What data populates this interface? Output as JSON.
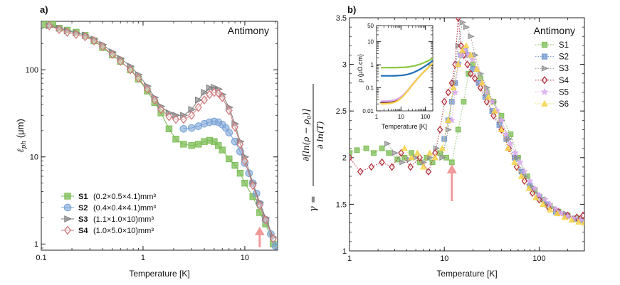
{
  "chart_data": [
    {
      "panel": "a)",
      "type": "scatter",
      "title": "Antimony",
      "xlabel": "Temperature [K]",
      "ylabel": "ℓ_ph (μm)",
      "xscale": "log",
      "yscale": "log",
      "xlim": [
        0.1,
        21
      ],
      "ylim": [
        0.85,
        360
      ],
      "xticks": [
        {
          "v": 0.1,
          "label": "0.1"
        },
        {
          "v": 1,
          "label": "1"
        },
        {
          "v": 10,
          "label": "10"
        }
      ],
      "yticks": [
        {
          "v": 1,
          "label": "1"
        },
        {
          "v": 10,
          "label": "10"
        },
        {
          "v": 100,
          "label": "100"
        }
      ],
      "arrow_at_T": 14,
      "series": [
        {
          "name": "S1",
          "desc": "(0.2×0.5×4.1)mm³",
          "color": "#7cbd55",
          "marker": "square",
          "x": [
            0.11,
            0.13,
            0.15,
            0.18,
            0.22,
            0.27,
            0.33,
            0.4,
            0.5,
            0.6,
            0.75,
            0.9,
            1.1,
            1.3,
            1.5,
            1.8,
            2.1,
            2.5,
            3.0,
            3.5,
            4.0,
            4.5,
            5.0,
            5.5,
            6.0,
            7.0,
            8.0,
            9.0,
            10.0,
            12.0,
            14.0,
            16.0,
            19.0
          ],
          "y": [
            330,
            330,
            300,
            285,
            270,
            248,
            215,
            180,
            148,
            125,
            100,
            78,
            57,
            42,
            32,
            21,
            16,
            14,
            13.5,
            14,
            15,
            15.5,
            15,
            13.5,
            12,
            9.5,
            8,
            6.5,
            5,
            3.5,
            2.3,
            1.7,
            1.0
          ]
        },
        {
          "name": "S2",
          "desc": "(0.4×0.4×4.1)mm³",
          "color": "#7aa3d6",
          "marker": "circle",
          "x": [
            2.5,
            3.0,
            3.5,
            4.0,
            4.5,
            5.0,
            5.5,
            6.0,
            6.5,
            7.0,
            8.0,
            9.0,
            10.0,
            11.0,
            12.0,
            13.0,
            14.0,
            16.0,
            18.0,
            20.0
          ],
          "y": [
            21,
            21.5,
            22.5,
            24,
            25,
            25.5,
            25,
            23.5,
            21.5,
            19,
            15,
            11.5,
            8.5,
            6.5,
            5,
            3.8,
            2.9,
            1.9,
            1.3,
            0.95
          ]
        },
        {
          "name": "S3",
          "desc": "(1.1×1.0×10)mm³",
          "color": "#7e7e7e",
          "marker": "triangle-right",
          "x": [
            0.12,
            0.15,
            0.18,
            0.22,
            0.27,
            0.33,
            0.4,
            0.5,
            0.6,
            0.75,
            0.9,
            1.1,
            1.3,
            1.5,
            1.8,
            2.1,
            2.5,
            3.0,
            3.5,
            4.0,
            4.5,
            5.0,
            5.5,
            6.0,
            7.0,
            8.0,
            9.0,
            10.0,
            12.0,
            14.0,
            16.0,
            19.0
          ],
          "y": [
            320,
            300,
            280,
            265,
            250,
            225,
            195,
            160,
            135,
            110,
            88,
            65,
            48,
            38,
            32,
            30,
            30,
            35,
            45,
            55,
            62,
            63,
            60,
            52,
            37,
            24,
            15,
            10,
            5.0,
            3.0,
            2.0,
            1.2
          ]
        },
        {
          "name": "S4",
          "desc": "(1.0×5.0×10)mm³",
          "color": "#cf7a7c",
          "marker": "diamond",
          "x": [
            0.12,
            0.15,
            0.18,
            0.22,
            0.27,
            0.33,
            0.4,
            0.5,
            0.6,
            0.75,
            0.9,
            1.1,
            1.3,
            1.5,
            1.8,
            2.1,
            2.5,
            3.0,
            3.5,
            4.0,
            4.5,
            5.0,
            5.5,
            6.0,
            7.0,
            8.0,
            9.0,
            10.0,
            12.0,
            14.0,
            16.0,
            19.0
          ],
          "y": [
            320,
            290,
            270,
            255,
            240,
            215,
            185,
            150,
            125,
            100,
            80,
            60,
            45,
            35,
            29,
            27,
            27,
            30,
            37,
            45,
            52,
            55,
            54,
            48,
            34,
            22,
            14,
            9,
            4.7,
            2.8,
            1.9,
            1.15
          ]
        }
      ]
    },
    {
      "panel": "b)",
      "type": "scatter",
      "title": "Antimony",
      "xlabel": "Temperature [K]",
      "ylabel": "γ = ∂[ln(ρ − ρ0)] / ∂ ln(T)",
      "xscale": "log",
      "yscale": "linear",
      "xlim": [
        1,
        300
      ],
      "ylim": [
        1,
        3.5
      ],
      "xticks": [
        {
          "v": 1,
          "label": "1"
        },
        {
          "v": 10,
          "label": "10"
        },
        {
          "v": 100,
          "label": "100"
        }
      ],
      "yticks": [
        {
          "v": 1,
          "label": "1"
        },
        {
          "v": 1.5,
          "label": "1.5"
        },
        {
          "v": 2,
          "label": "2"
        },
        {
          "v": 2.5,
          "label": "2.5"
        },
        {
          "v": 3,
          "label": "3"
        },
        {
          "v": 3.5,
          "label": "3.5"
        }
      ],
      "arrow_at_T": 12,
      "series": [
        {
          "name": "S1",
          "color": "#7cbd55",
          "marker": "square",
          "x": [
            1.0,
            1.2,
            1.5,
            1.8,
            2.2,
            2.6,
            3.2,
            3.8,
            4.5,
            5.5,
            6.5,
            7.5,
            9.0,
            10.5,
            12.0,
            14.0,
            16.0,
            18.0,
            20.0,
            24.0,
            28.0,
            33.0,
            40.0,
            50.0,
            60.0,
            75.0,
            90.0,
            110.0,
            130.0,
            160.0,
            200.0,
            250.0,
            300.0
          ],
          "y": [
            2.05,
            2.08,
            2.1,
            2.05,
            2.1,
            2.05,
            1.98,
            2.0,
            2.05,
            1.95,
            2.0,
            1.95,
            2.05,
            2.0,
            1.95,
            2.3,
            2.6,
            2.9,
            3.0,
            2.85,
            2.7,
            2.6,
            2.45,
            2.25,
            2.0,
            1.8,
            1.65,
            1.55,
            1.48,
            1.42,
            1.38,
            1.35,
            1.32
          ]
        },
        {
          "name": "S2",
          "color": "#6f97cf",
          "marker": "square",
          "x": [
            10.0,
            11.0,
            12.0,
            13.0,
            14.0,
            15.0,
            16.5,
            18.0,
            20.0,
            23.0,
            27.0,
            32.0,
            38.0,
            45.0,
            55.0,
            65.0,
            80.0,
            100.0,
            120.0,
            150.0,
            190.0,
            240.0,
            290.0
          ],
          "y": [
            2.2,
            2.4,
            2.6,
            2.8,
            3.0,
            3.1,
            3.15,
            3.1,
            2.95,
            2.8,
            2.65,
            2.5,
            2.35,
            2.2,
            2.0,
            1.85,
            1.7,
            1.57,
            1.5,
            1.42,
            1.38,
            1.34,
            1.33
          ]
        },
        {
          "name": "S3",
          "color": "#8a8a8a",
          "marker": "triangle-right",
          "x": [
            2.5,
            3.0,
            3.6,
            4.3,
            5.0,
            6.0,
            7.0,
            8.2,
            9.5,
            11.0,
            12.5,
            14.0,
            15.5,
            17.0,
            19.0,
            21.0,
            24.0,
            28.0,
            33.0,
            40.0,
            48.0,
            58.0,
            70.0,
            85.0,
            100.0,
            120.0,
            150.0,
            190.0,
            240.0,
            290.0
          ],
          "y": [
            2.15,
            2.05,
            1.95,
            1.98,
            2.0,
            1.95,
            2.0,
            2.1,
            2.0,
            2.3,
            2.8,
            3.2,
            3.45,
            3.4,
            3.3,
            3.1,
            2.9,
            2.75,
            2.6,
            2.4,
            2.2,
            2.0,
            1.8,
            1.68,
            1.6,
            1.5,
            1.45,
            1.4,
            1.35,
            1.33
          ]
        },
        {
          "name": "S4",
          "color": "#b52d3a",
          "marker": "diamond",
          "x": [
            1.0,
            1.3,
            1.7,
            2.2,
            2.8,
            3.5,
            4.4,
            5.5,
            6.8,
            8.0,
            9.0,
            10.0,
            11.0,
            12.0,
            13.0,
            14.0,
            15.0,
            16.0,
            17.5,
            19.0,
            21.0,
            24.0,
            28.0,
            33.0,
            40.0,
            48.0,
            58.0,
            70.0,
            85.0,
            100.0,
            125.0,
            160.0,
            200.0,
            250.0,
            290.0
          ],
          "y": [
            2.0,
            1.85,
            1.9,
            1.95,
            1.9,
            2.05,
            1.9,
            2.0,
            1.85,
            2.05,
            2.3,
            2.6,
            2.7,
            2.8,
            3.0,
            3.5,
            3.2,
            3.1,
            3.0,
            2.9,
            2.85,
            2.75,
            2.6,
            2.45,
            2.3,
            2.1,
            1.9,
            1.75,
            1.62,
            1.55,
            1.47,
            1.42,
            1.38,
            1.36,
            1.38
          ]
        },
        {
          "name": "S5",
          "color": "#d9a8ec",
          "marker": "star",
          "x": [
            12.0,
            13.0,
            14.0,
            15.0,
            16.5,
            18.0,
            20.0,
            22.0,
            25.0,
            28.0,
            32.0,
            36.0,
            40.0,
            45.0,
            50.0,
            56.0,
            63.0,
            70.0,
            80.0,
            90.0,
            100.0,
            115.0,
            130.0,
            150.0,
            170.0,
            200.0,
            230.0,
            270.0,
            300.0
          ],
          "y": [
            2.4,
            2.7,
            3.0,
            3.1,
            3.15,
            3.1,
            3.05,
            2.95,
            2.8,
            2.7,
            2.6,
            2.5,
            2.4,
            2.25,
            2.15,
            2.05,
            1.95,
            1.85,
            1.75,
            1.67,
            1.6,
            1.55,
            1.5,
            1.45,
            1.4,
            1.37,
            1.35,
            1.33,
            1.32
          ]
        },
        {
          "name": "S6",
          "color": "#f6d34a",
          "marker": "triangle-up",
          "x": [
            3.8,
            4.5,
            5.2,
            6.0,
            7.0,
            8.0,
            9.5,
            11.0,
            12.5,
            14.0,
            15.5,
            17.0,
            19.0,
            22.0,
            25.0,
            29.0,
            34.0,
            40.0,
            47.0,
            55.0,
            65.0,
            78.0,
            92.0,
            110.0,
            130.0,
            155.0,
            185.0,
            220.0,
            260.0,
            300.0
          ],
          "y": [
            2.1,
            2.0,
            2.05,
            1.9,
            2.05,
            2.0,
            2.1,
            2.4,
            2.75,
            3.0,
            3.15,
            3.2,
            3.1,
            2.95,
            2.8,
            2.65,
            2.5,
            2.3,
            2.1,
            1.95,
            1.8,
            1.67,
            1.57,
            1.5,
            1.44,
            1.4,
            1.36,
            1.33,
            1.31,
            1.3
          ]
        }
      ],
      "inset": {
        "type": "line",
        "xlabel": "Temperature [K]",
        "ylabel": "ρ (μΩ.cm)",
        "xscale": "log",
        "yscale": "log",
        "xlim": [
          1,
          200
        ],
        "ylim": [
          0.01,
          50
        ],
        "xticks": [
          {
            "v": 1,
            "label": "1"
          },
          {
            "v": 10,
            "label": "10"
          },
          {
            "v": 100,
            "label": "100"
          }
        ],
        "yticks": [
          {
            "v": 0.01,
            "label": "0.01"
          },
          {
            "v": 0.1,
            "label": "0.1"
          },
          {
            "v": 1,
            "label": "1"
          },
          {
            "v": 10,
            "label": "10"
          },
          {
            "v": 50,
            "label": "50"
          }
        ],
        "series": [
          {
            "name": "S1",
            "color": "#8cc63f",
            "rho0": 0.75
          },
          {
            "name": "S2",
            "color": "#1d6fb8",
            "rho0": 0.33
          },
          {
            "name": "S3",
            "color": "#444444",
            "rho0": 0.022
          },
          {
            "name": "S4",
            "color": "#a3203b",
            "rho0": 0.021
          },
          {
            "name": "S5",
            "color": "#d9a8ec",
            "rho0": 0.026
          },
          {
            "name": "S6",
            "color": "#f6d34a",
            "rho0": 0.02
          }
        ]
      }
    }
  ]
}
